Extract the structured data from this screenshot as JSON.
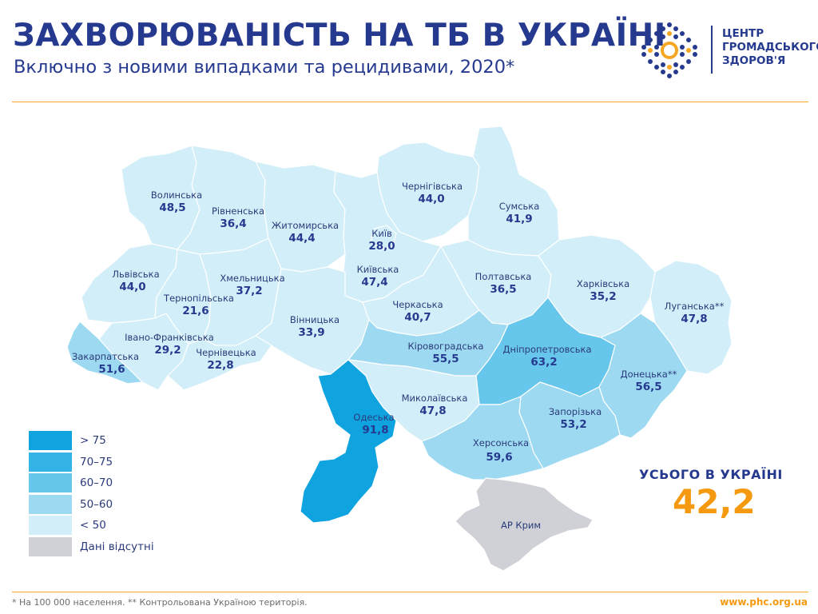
{
  "header": {
    "title": "ЗАХВОРЮВАНІСТЬ НА ТБ В УКРАЇНІ",
    "subtitle": "Включно з новими випадками та рецидивами, 2020*"
  },
  "logo": {
    "line1": "ЦЕНТР",
    "line2": "ГРОМАДСЬКОГО",
    "line3": "ЗДОРОВ'Я"
  },
  "colors": {
    "lt50": "#d2eef8",
    "r50_60": "#9ddaf2",
    "r60_70": "#66c6ec",
    "r70_75": "#33b3e6",
    "gt75": "#0fa3e0",
    "nodata": "#cfd1d6",
    "accent": "#f59a10",
    "title": "#253a8e"
  },
  "regions": [
    {
      "id": "volynska",
      "name": "Волинська",
      "value": "48,5",
      "class": "lt50"
    },
    {
      "id": "rivnenska",
      "name": "Рівненська",
      "value": "36,4",
      "class": "lt50"
    },
    {
      "id": "zhytomyrska",
      "name": "Житомирська",
      "value": "44,4",
      "class": "lt50"
    },
    {
      "id": "kyiv",
      "name": "Київ",
      "value": "28,0",
      "class": "lt50"
    },
    {
      "id": "chernihivska",
      "name": "Чернігівська",
      "value": "44,0",
      "class": "lt50"
    },
    {
      "id": "sumska",
      "name": "Сумська",
      "value": "41,9",
      "class": "lt50"
    },
    {
      "id": "lvivska",
      "name": "Львівська",
      "value": "44,0",
      "class": "lt50"
    },
    {
      "id": "khmelnytska",
      "name": "Хмельницька",
      "value": "37,2",
      "class": "lt50"
    },
    {
      "id": "ternopilska",
      "name": "Тернопільська",
      "value": "21,6",
      "class": "lt50"
    },
    {
      "id": "kyivska",
      "name": "Київська",
      "value": "47,4",
      "class": "lt50"
    },
    {
      "id": "poltavska",
      "name": "Полтавська",
      "value": "36,5",
      "class": "lt50"
    },
    {
      "id": "kharkivska",
      "name": "Харківська",
      "value": "35,2",
      "class": "lt50"
    },
    {
      "id": "luhanska",
      "name": "Луганська**",
      "value": "47,8",
      "class": "lt50"
    },
    {
      "id": "cherkaska",
      "name": "Черкаська",
      "value": "40,7",
      "class": "lt50"
    },
    {
      "id": "vinnytska",
      "name": "Вінницька",
      "value": "33,9",
      "class": "lt50"
    },
    {
      "id": "ivano_frankivska",
      "name": "Івано-Франківська",
      "value": "29,2",
      "class": "lt50"
    },
    {
      "id": "zakarpatska",
      "name": "Закарпатська",
      "value": "51,6",
      "class": "r50_60"
    },
    {
      "id": "chernivetska",
      "name": "Чернівецька",
      "value": "22,8",
      "class": "lt50"
    },
    {
      "id": "kirovohradska",
      "name": "Кіровоградська",
      "value": "55,5",
      "class": "r50_60"
    },
    {
      "id": "dnipropetrovska",
      "name": "Дніпропетровська",
      "value": "63,2",
      "class": "r60_70"
    },
    {
      "id": "donetska",
      "name": "Донецька**",
      "value": "56,5",
      "class": "r50_60"
    },
    {
      "id": "odeska",
      "name": "Одеська",
      "value": "91,8",
      "class": "gt75"
    },
    {
      "id": "mykolaivska",
      "name": "Миколаївська",
      "value": "47,8",
      "class": "lt50"
    },
    {
      "id": "zaporizka",
      "name": "Запорізька",
      "value": "53,2",
      "class": "r50_60"
    },
    {
      "id": "khersonska",
      "name": "Херсонська",
      "value": "59,6",
      "class": "r50_60"
    },
    {
      "id": "crimea",
      "name": "АР Крим",
      "value": "",
      "class": "nodata"
    }
  ],
  "legend": {
    "items": [
      {
        "label": "> 75",
        "class": "gt75"
      },
      {
        "label": "70–75",
        "class": "r70_75"
      },
      {
        "label": "60–70",
        "class": "r60_70"
      },
      {
        "label": "50–60",
        "class": "r50_60"
      },
      {
        "label": "< 50",
        "class": "lt50"
      },
      {
        "label": "Дані відсутні",
        "class": "nodata"
      }
    ]
  },
  "total": {
    "label": "УСЬОГО В УКРАЇНІ",
    "value": "42,2"
  },
  "footer": {
    "note": "* На 100 000 населення. ** Контрольована Україною територія.",
    "url": "www.phc.org.ua"
  }
}
